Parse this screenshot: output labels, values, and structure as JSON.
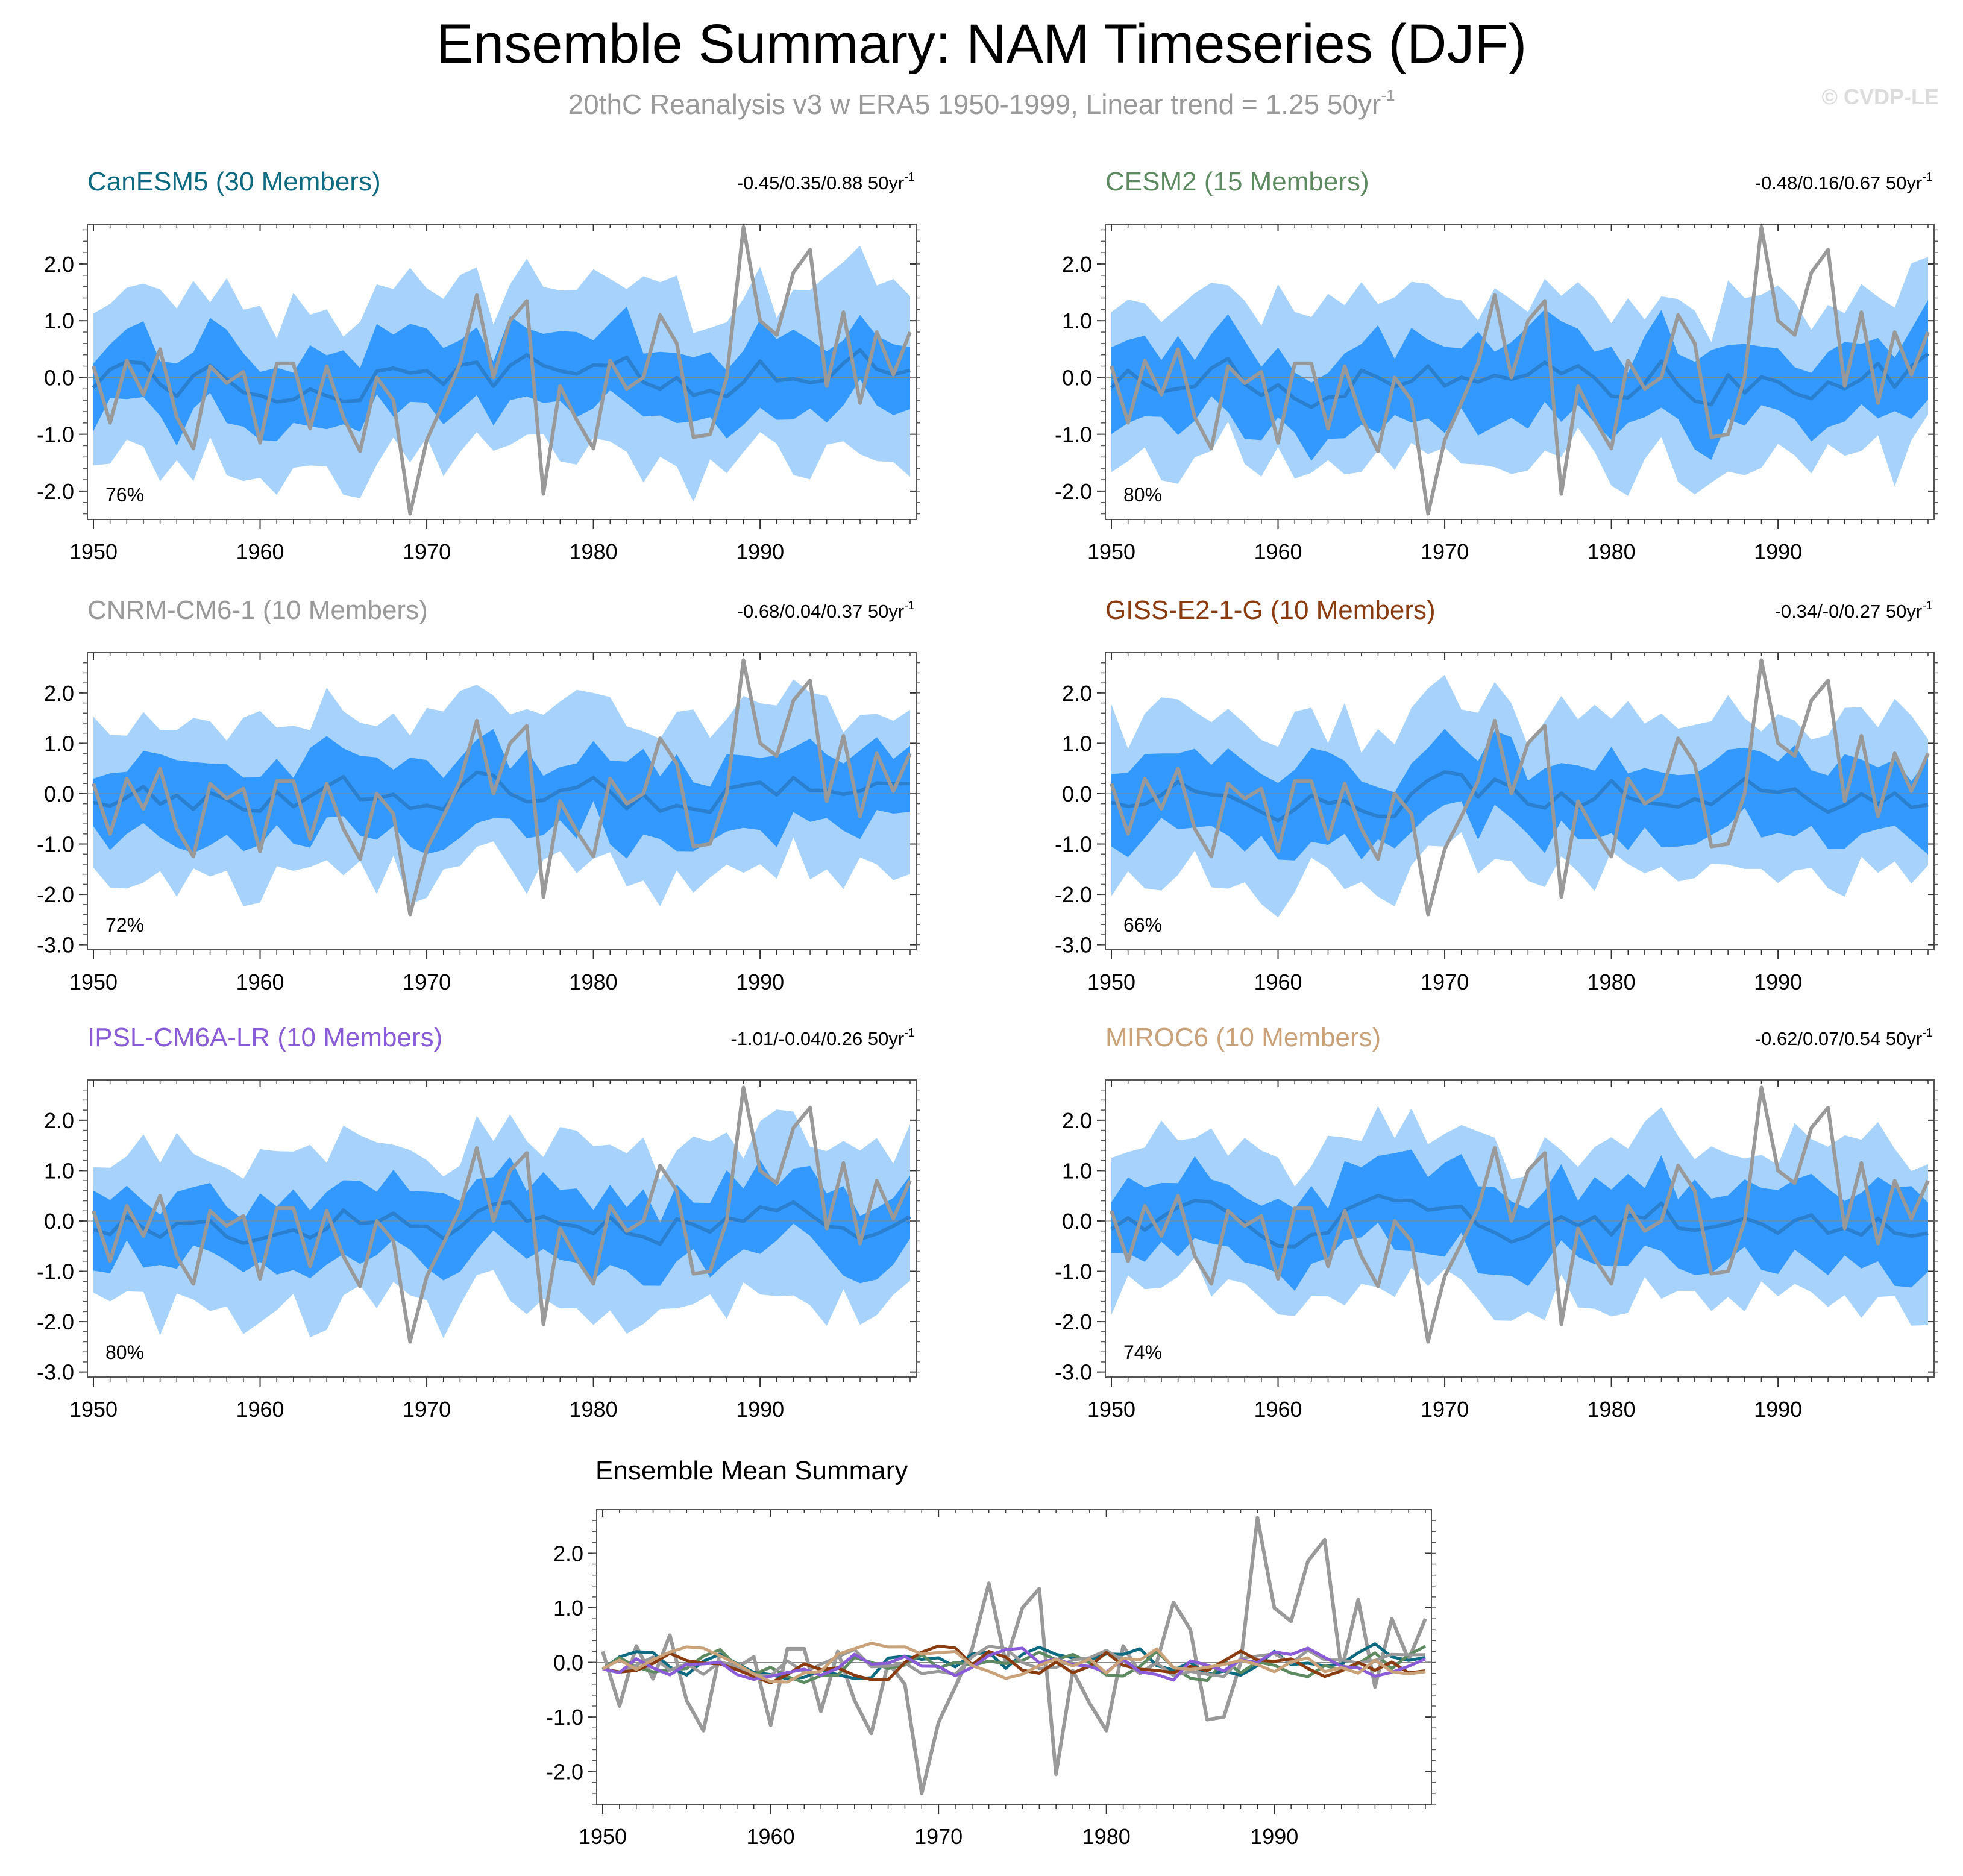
{
  "page": {
    "title": "Ensemble Summary: NAM Timeseries (DJF)",
    "subtitle": "20thC Reanalysis v3 w ERA5 1950-1999, Linear trend = 1.25 50yr",
    "subtitle_superscript": "-1",
    "watermark": "© CVDP-LE"
  },
  "colors": {
    "outer_band": "#a6d2fb",
    "inner_band": "#3399ff",
    "ensemble_mean": "#2a7fcf",
    "observations": "#999999"
  },
  "chart_data": [
    {
      "type": "area",
      "model": "CanESM5 (30 Members)",
      "title_color": "#0d6a80",
      "trend_label": "-0.45/0.35/0.88 50yr",
      "trend_superscript": "-1",
      "percent_label": "76%",
      "xlabel": "",
      "ylabel": "",
      "xlim": [
        1950,
        1999
      ],
      "ylim": [
        -2.5,
        2.7
      ],
      "yticks": [
        2.0,
        1.0,
        0.0,
        -1.0,
        -2.0
      ],
      "yticklabels": [
        "2.0",
        "1.0",
        "0.0",
        "-1.0",
        "-2.0"
      ],
      "xticks": [
        1950,
        1960,
        1970,
        1980,
        1990
      ],
      "seed": 11,
      "outer_width": 1.45,
      "inner_width": 0.65
    },
    {
      "type": "area",
      "model": "CESM2 (15 Members)",
      "title_color": "#5e8a62",
      "trend_label": "-0.48/0.16/0.67 50yr",
      "trend_superscript": "-1",
      "percent_label": "80%",
      "xlabel": "",
      "ylabel": "",
      "xlim": [
        1950,
        1999
      ],
      "ylim": [
        -2.5,
        2.7
      ],
      "yticks": [
        2.0,
        1.0,
        0.0,
        -1.0,
        -2.0
      ],
      "yticklabels": [
        "2.0",
        "1.0",
        "0.0",
        "-1.0",
        "-2.0"
      ],
      "xticks": [
        1950,
        1960,
        1970,
        1980,
        1990
      ],
      "seed": 23,
      "outer_width": 1.4,
      "inner_width": 0.7
    },
    {
      "type": "area",
      "model": "CNRM-CM6-1 (10 Members)",
      "title_color": "#999999",
      "trend_label": "-0.68/0.04/0.37 50yr",
      "trend_superscript": "-1",
      "percent_label": "72%",
      "xlabel": "",
      "ylabel": "",
      "xlim": [
        1950,
        1999
      ],
      "ylim": [
        -3.1,
        2.8
      ],
      "yticks": [
        2.0,
        1.0,
        0.0,
        -1.0,
        -2.0,
        -3.0
      ],
      "yticklabels": [
        "2.0",
        "1.0",
        "0.0",
        "-1.0",
        "-2.0",
        "-3.0"
      ],
      "xticks": [
        1950,
        1960,
        1970,
        1980,
        1990
      ],
      "seed": 37,
      "outer_width": 1.55,
      "inner_width": 0.75
    },
    {
      "type": "area",
      "model": "GISS-E2-1-G (10 Members)",
      "title_color": "#8a3b0f",
      "trend_label": "-0.34/-0/0.27 50yr",
      "trend_superscript": "-1",
      "percent_label": "66%",
      "xlabel": "",
      "ylabel": "",
      "xlim": [
        1950,
        1999
      ],
      "ylim": [
        -3.1,
        2.8
      ],
      "yticks": [
        2.0,
        1.0,
        0.0,
        -1.0,
        -2.0,
        -3.0
      ],
      "yticklabels": [
        "2.0",
        "1.0",
        "0.0",
        "-1.0",
        "-2.0",
        "-3.0"
      ],
      "xticks": [
        1950,
        1960,
        1970,
        1980,
        1990
      ],
      "seed": 41,
      "outer_width": 1.5,
      "inner_width": 0.75
    },
    {
      "type": "area",
      "model": "IPSL-CM6A-LR (10 Members)",
      "title_color": "#8a5bd6",
      "trend_label": "-1.01/-0.04/0.26 50yr",
      "trend_superscript": "-1",
      "percent_label": "80%",
      "xlabel": "",
      "ylabel": "",
      "xlim": [
        1950,
        1999
      ],
      "ylim": [
        -3.1,
        2.8
      ],
      "yticks": [
        2.0,
        1.0,
        0.0,
        -1.0,
        -2.0,
        -3.0
      ],
      "yticklabels": [
        "2.0",
        "1.0",
        "0.0",
        "-1.0",
        "-2.0",
        "-3.0"
      ],
      "xticks": [
        1950,
        1960,
        1970,
        1980,
        1990
      ],
      "seed": 53,
      "outer_width": 1.55,
      "inner_width": 0.7
    },
    {
      "type": "area",
      "model": "MIROC6 (10 Members)",
      "title_color": "#c9a27a",
      "trend_label": "-0.62/0.07/0.54 50yr",
      "trend_superscript": "-1",
      "percent_label": "74%",
      "xlabel": "",
      "ylabel": "",
      "xlim": [
        1950,
        1999
      ],
      "ylim": [
        -3.1,
        2.8
      ],
      "yticks": [
        2.0,
        1.0,
        0.0,
        -1.0,
        -2.0,
        -3.0
      ],
      "yticklabels": [
        "2.0",
        "1.0",
        "0.0",
        "-1.0",
        "-2.0",
        "-3.0"
      ],
      "xticks": [
        1950,
        1960,
        1970,
        1980,
        1990
      ],
      "seed": 67,
      "outer_width": 1.5,
      "inner_width": 0.75
    },
    {
      "type": "line",
      "title": "Ensemble Mean Summary",
      "xlabel": "",
      "ylabel": "",
      "xlim": [
        1950,
        1999
      ],
      "ylim": [
        -2.6,
        2.8
      ],
      "yticks": [
        2.0,
        1.0,
        0.0,
        -1.0,
        -2.0
      ],
      "yticklabels": [
        "2.0",
        "1.0",
        "0.0",
        "-1.0",
        "-2.0"
      ],
      "xticks": [
        1950,
        1960,
        1970,
        1980,
        1990
      ],
      "series_colors": [
        "#0d6a80",
        "#5e8a62",
        "#999999",
        "#8a3b0f",
        "#8a5bd6",
        "#c9a27a"
      ]
    }
  ],
  "observations": {
    "name": "20thC Reanalysis v3 w ERA5",
    "x_start": 1950,
    "values": [
      0.2,
      -0.8,
      0.3,
      -0.3,
      0.5,
      -0.7,
      -1.25,
      0.2,
      -0.1,
      0.1,
      -1.15,
      0.25,
      0.25,
      -0.9,
      0.2,
      -0.7,
      -1.3,
      0.0,
      -0.4,
      -2.4,
      -1.1,
      -0.45,
      0.25,
      1.45,
      0.0,
      1.0,
      1.35,
      -2.05,
      -0.15,
      -0.75,
      -1.25,
      0.3,
      -0.2,
      0.0,
      1.1,
      0.6,
      -1.05,
      -1.0,
      0.0,
      2.65,
      1.0,
      0.75,
      1.85,
      2.25,
      -0.15,
      1.15,
      -0.45,
      0.8,
      0.05,
      0.8
    ]
  }
}
